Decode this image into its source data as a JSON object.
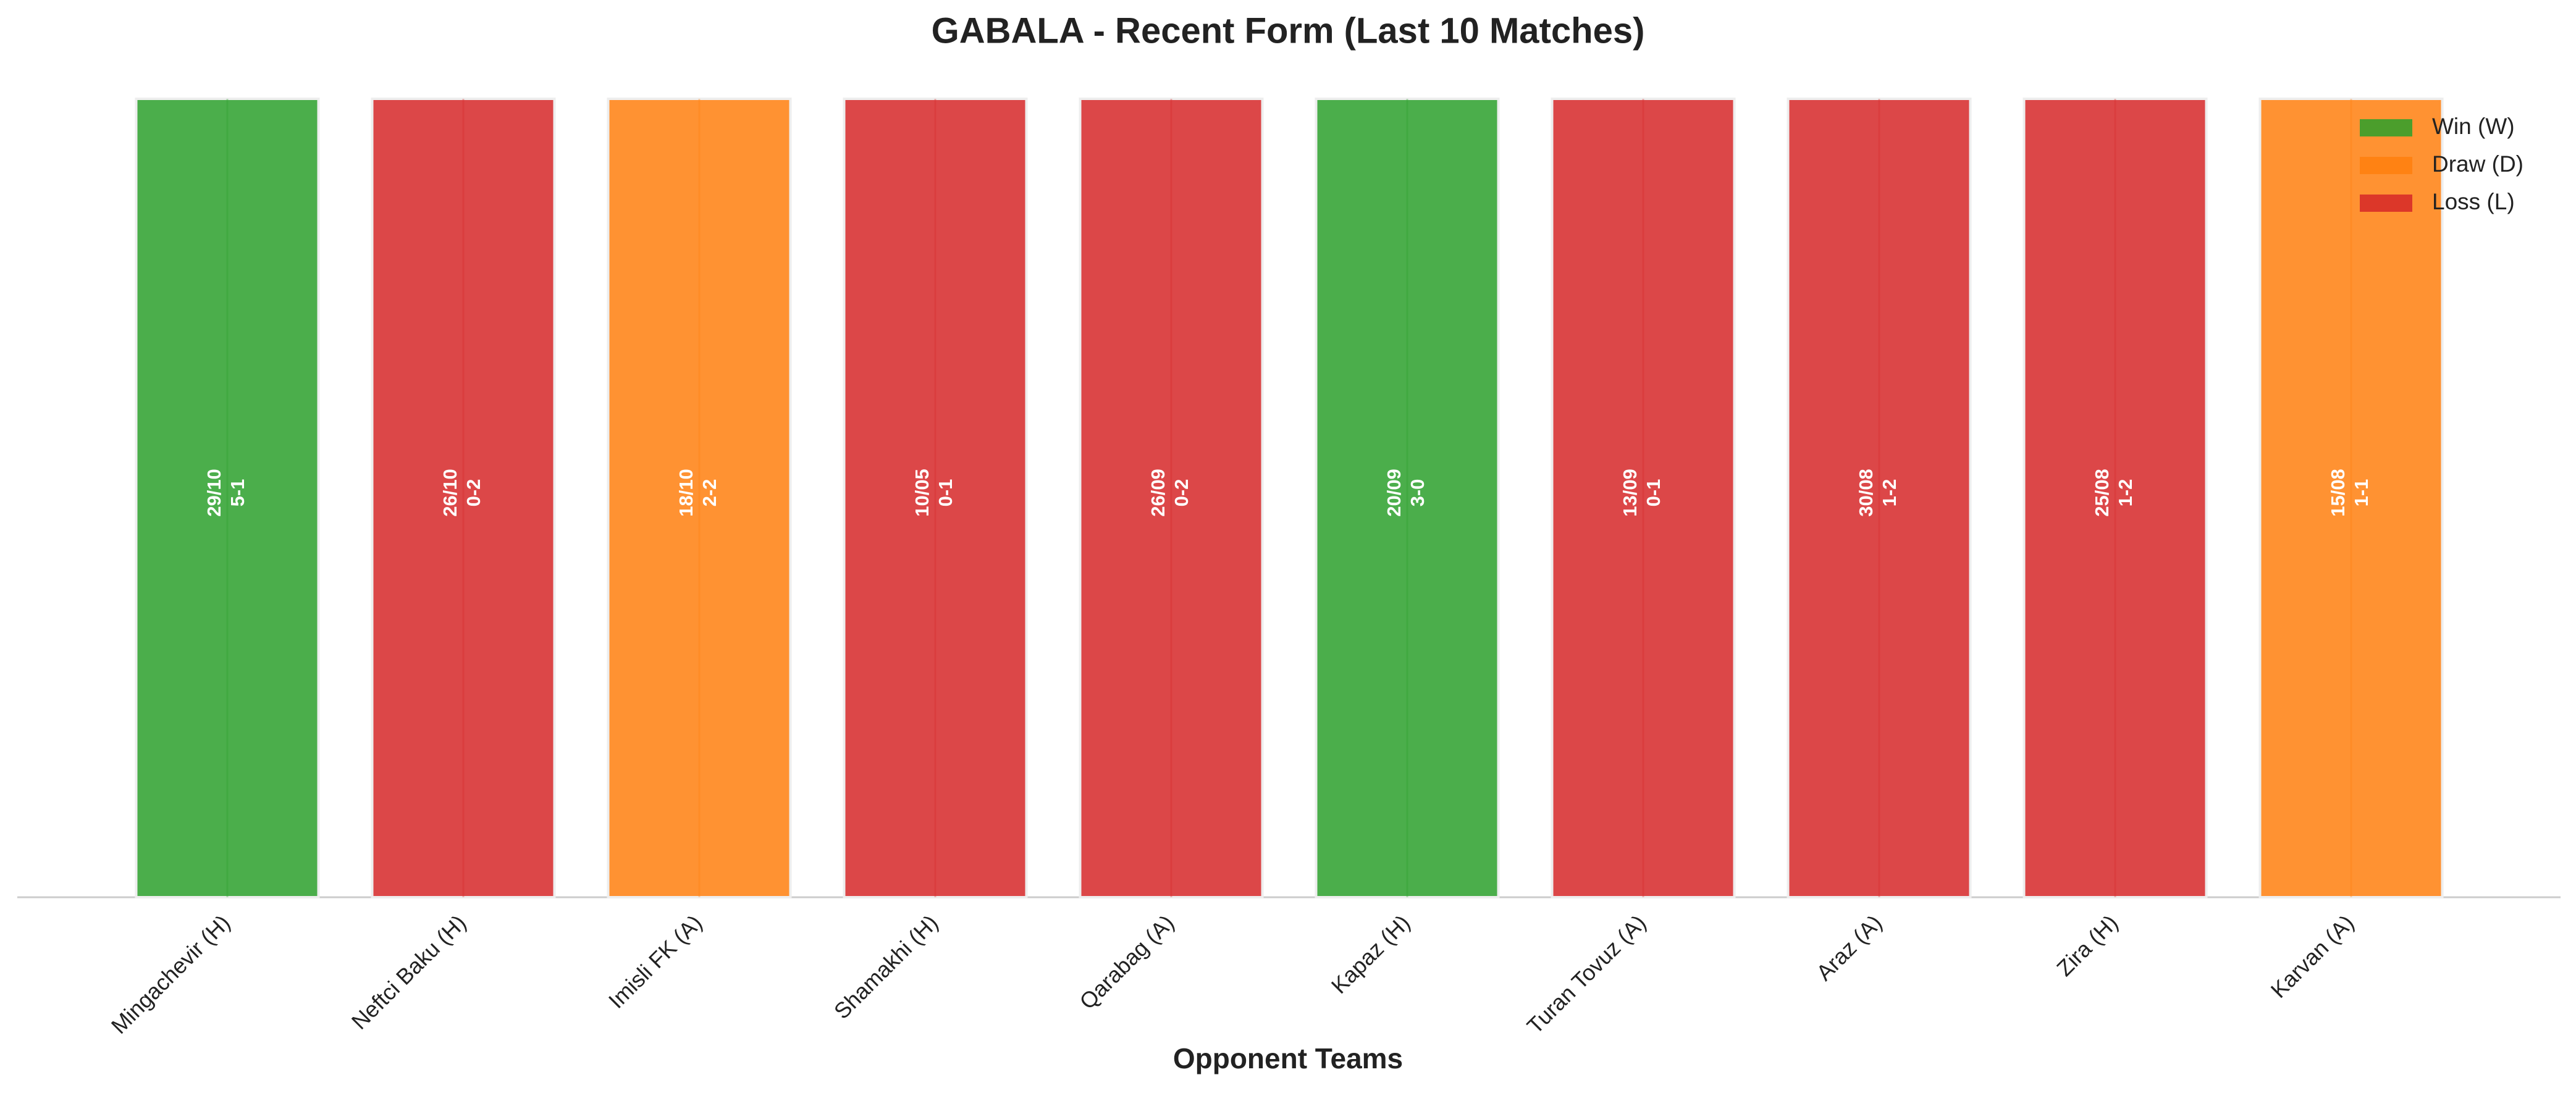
{
  "chart_data": {
    "type": "bar",
    "title": "GABALA - Recent Form (Last 10 Matches)",
    "x_label": "Opponent Teams",
    "categories": [
      "Mingachevir (H)",
      "Neftci Baku (H)",
      "Imisli FK (A)",
      "Shamakhi (H)",
      "Qarabag (A)",
      "Kapaz (H)",
      "Turan Tovuz (A)",
      "Araz (A)",
      "Zira (H)",
      "Karvan (A)"
    ],
    "dates": [
      "29/10",
      "26/10",
      "18/10",
      "10/05",
      "26/09",
      "20/09",
      "13/09",
      "30/08",
      "25/08",
      "15/08"
    ],
    "scores": [
      "5-1",
      "0-2",
      "2-2",
      "0-1",
      "0-2",
      "3-0",
      "0-1",
      "1-2",
      "1-2",
      "1-1"
    ],
    "series": [
      {
        "name": "Win (W)",
        "color": "#2ca02c",
        "values": [
          1,
          null,
          null,
          null,
          null,
          1,
          null,
          null,
          null,
          null
        ]
      },
      {
        "name": "Draw (D)",
        "color": "#ff7f0e",
        "values": [
          null,
          null,
          1,
          null,
          null,
          null,
          null,
          null,
          null,
          1
        ]
      },
      {
        "name": "Loss (L)",
        "color": "#d62728",
        "values": [
          null,
          1,
          null,
          1,
          1,
          null,
          1,
          1,
          1,
          null
        ]
      }
    ],
    "ylim": [
      0,
      1
    ],
    "legend": "upper right"
  }
}
